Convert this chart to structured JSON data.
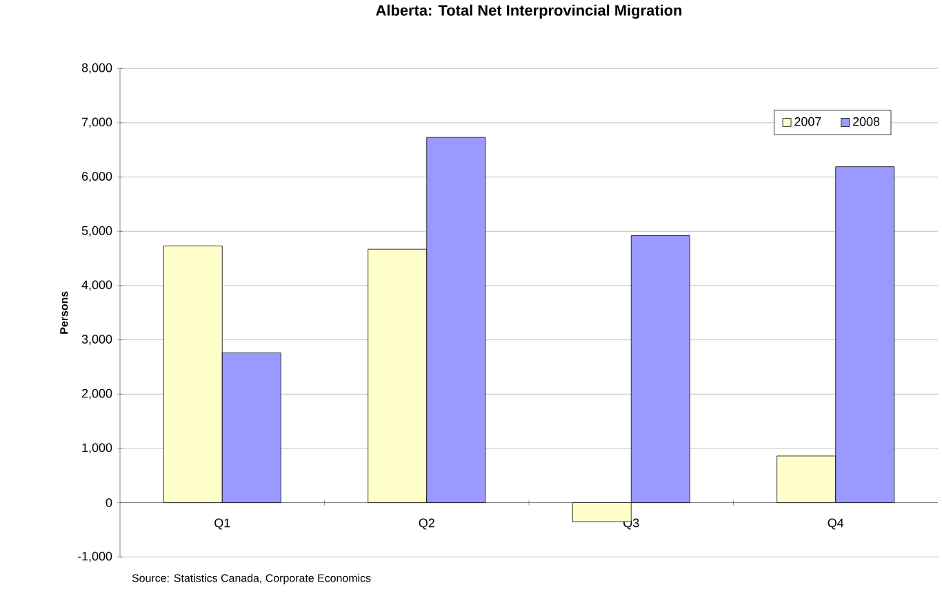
{
  "chart_data": {
    "type": "bar",
    "title": "Alberta: Total Net Interprovincial Migration",
    "ylabel": "Persons",
    "categories": [
      "Q1",
      "Q2",
      "Q3",
      "Q4"
    ],
    "series": [
      {
        "name": "2007",
        "color": "#ffffcc",
        "values": [
          4730,
          4670,
          -350,
          860
        ]
      },
      {
        "name": "2008",
        "color": "#9999ff",
        "values": [
          2760,
          6730,
          4920,
          6190
        ]
      }
    ],
    "ylim": [
      -1000,
      8000
    ],
    "yticks": [
      {
        "value": -1000,
        "label": "-1,000"
      },
      0,
      {
        "value": 1000,
        "label": "1,000"
      },
      {
        "value": 2000,
        "label": "2,000"
      },
      {
        "value": 3000,
        "label": "3,000"
      },
      {
        "value": 4000,
        "label": "4,000"
      },
      {
        "value": 5000,
        "label": "5,000"
      },
      {
        "value": 6000,
        "label": "6,000"
      },
      {
        "value": 7000,
        "label": "7,000"
      },
      {
        "value": 8000,
        "label": "8,000"
      }
    ],
    "grid": "y",
    "legend": "top right",
    "annotations": [
      "Source: Statistics Canada, Corporate Economics"
    ]
  }
}
